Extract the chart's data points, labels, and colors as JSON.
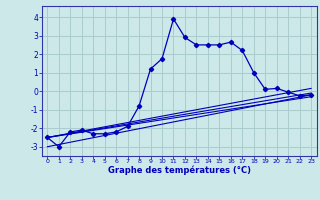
{
  "xlabel": "Graphe des températures (°C)",
  "background_color": "#cce8e8",
  "grid_color": "#aacccc",
  "line_color": "#0000bb",
  "spine_color": "#3333aa",
  "xlim": [
    -0.5,
    23.5
  ],
  "ylim": [
    -3.5,
    4.6
  ],
  "yticks": [
    -3,
    -2,
    -1,
    0,
    1,
    2,
    3,
    4
  ],
  "xticks": [
    0,
    1,
    2,
    3,
    4,
    5,
    6,
    7,
    8,
    9,
    10,
    11,
    12,
    13,
    14,
    15,
    16,
    17,
    18,
    19,
    20,
    21,
    22,
    23
  ],
  "main_x": [
    0,
    1,
    2,
    3,
    4,
    5,
    6,
    7,
    8,
    9,
    10,
    11,
    12,
    13,
    14,
    15,
    16,
    17,
    18,
    19,
    20,
    21,
    22,
    23
  ],
  "main_y": [
    -2.5,
    -3.0,
    -2.2,
    -2.1,
    -2.3,
    -2.3,
    -2.2,
    -1.9,
    -0.8,
    1.2,
    1.75,
    3.9,
    2.9,
    2.5,
    2.5,
    2.5,
    2.65,
    2.2,
    1.0,
    0.1,
    0.15,
    -0.05,
    -0.25,
    -0.2
  ],
  "line1_x": [
    0,
    23
  ],
  "line1_y": [
    -2.5,
    -0.1
  ],
  "line2_x": [
    0,
    23
  ],
  "line2_y": [
    -2.5,
    0.15
  ],
  "line3_x": [
    0,
    23
  ],
  "line3_y": [
    -3.0,
    -0.2
  ],
  "line4_x": [
    0,
    23
  ],
  "line4_y": [
    -2.5,
    -0.3
  ]
}
